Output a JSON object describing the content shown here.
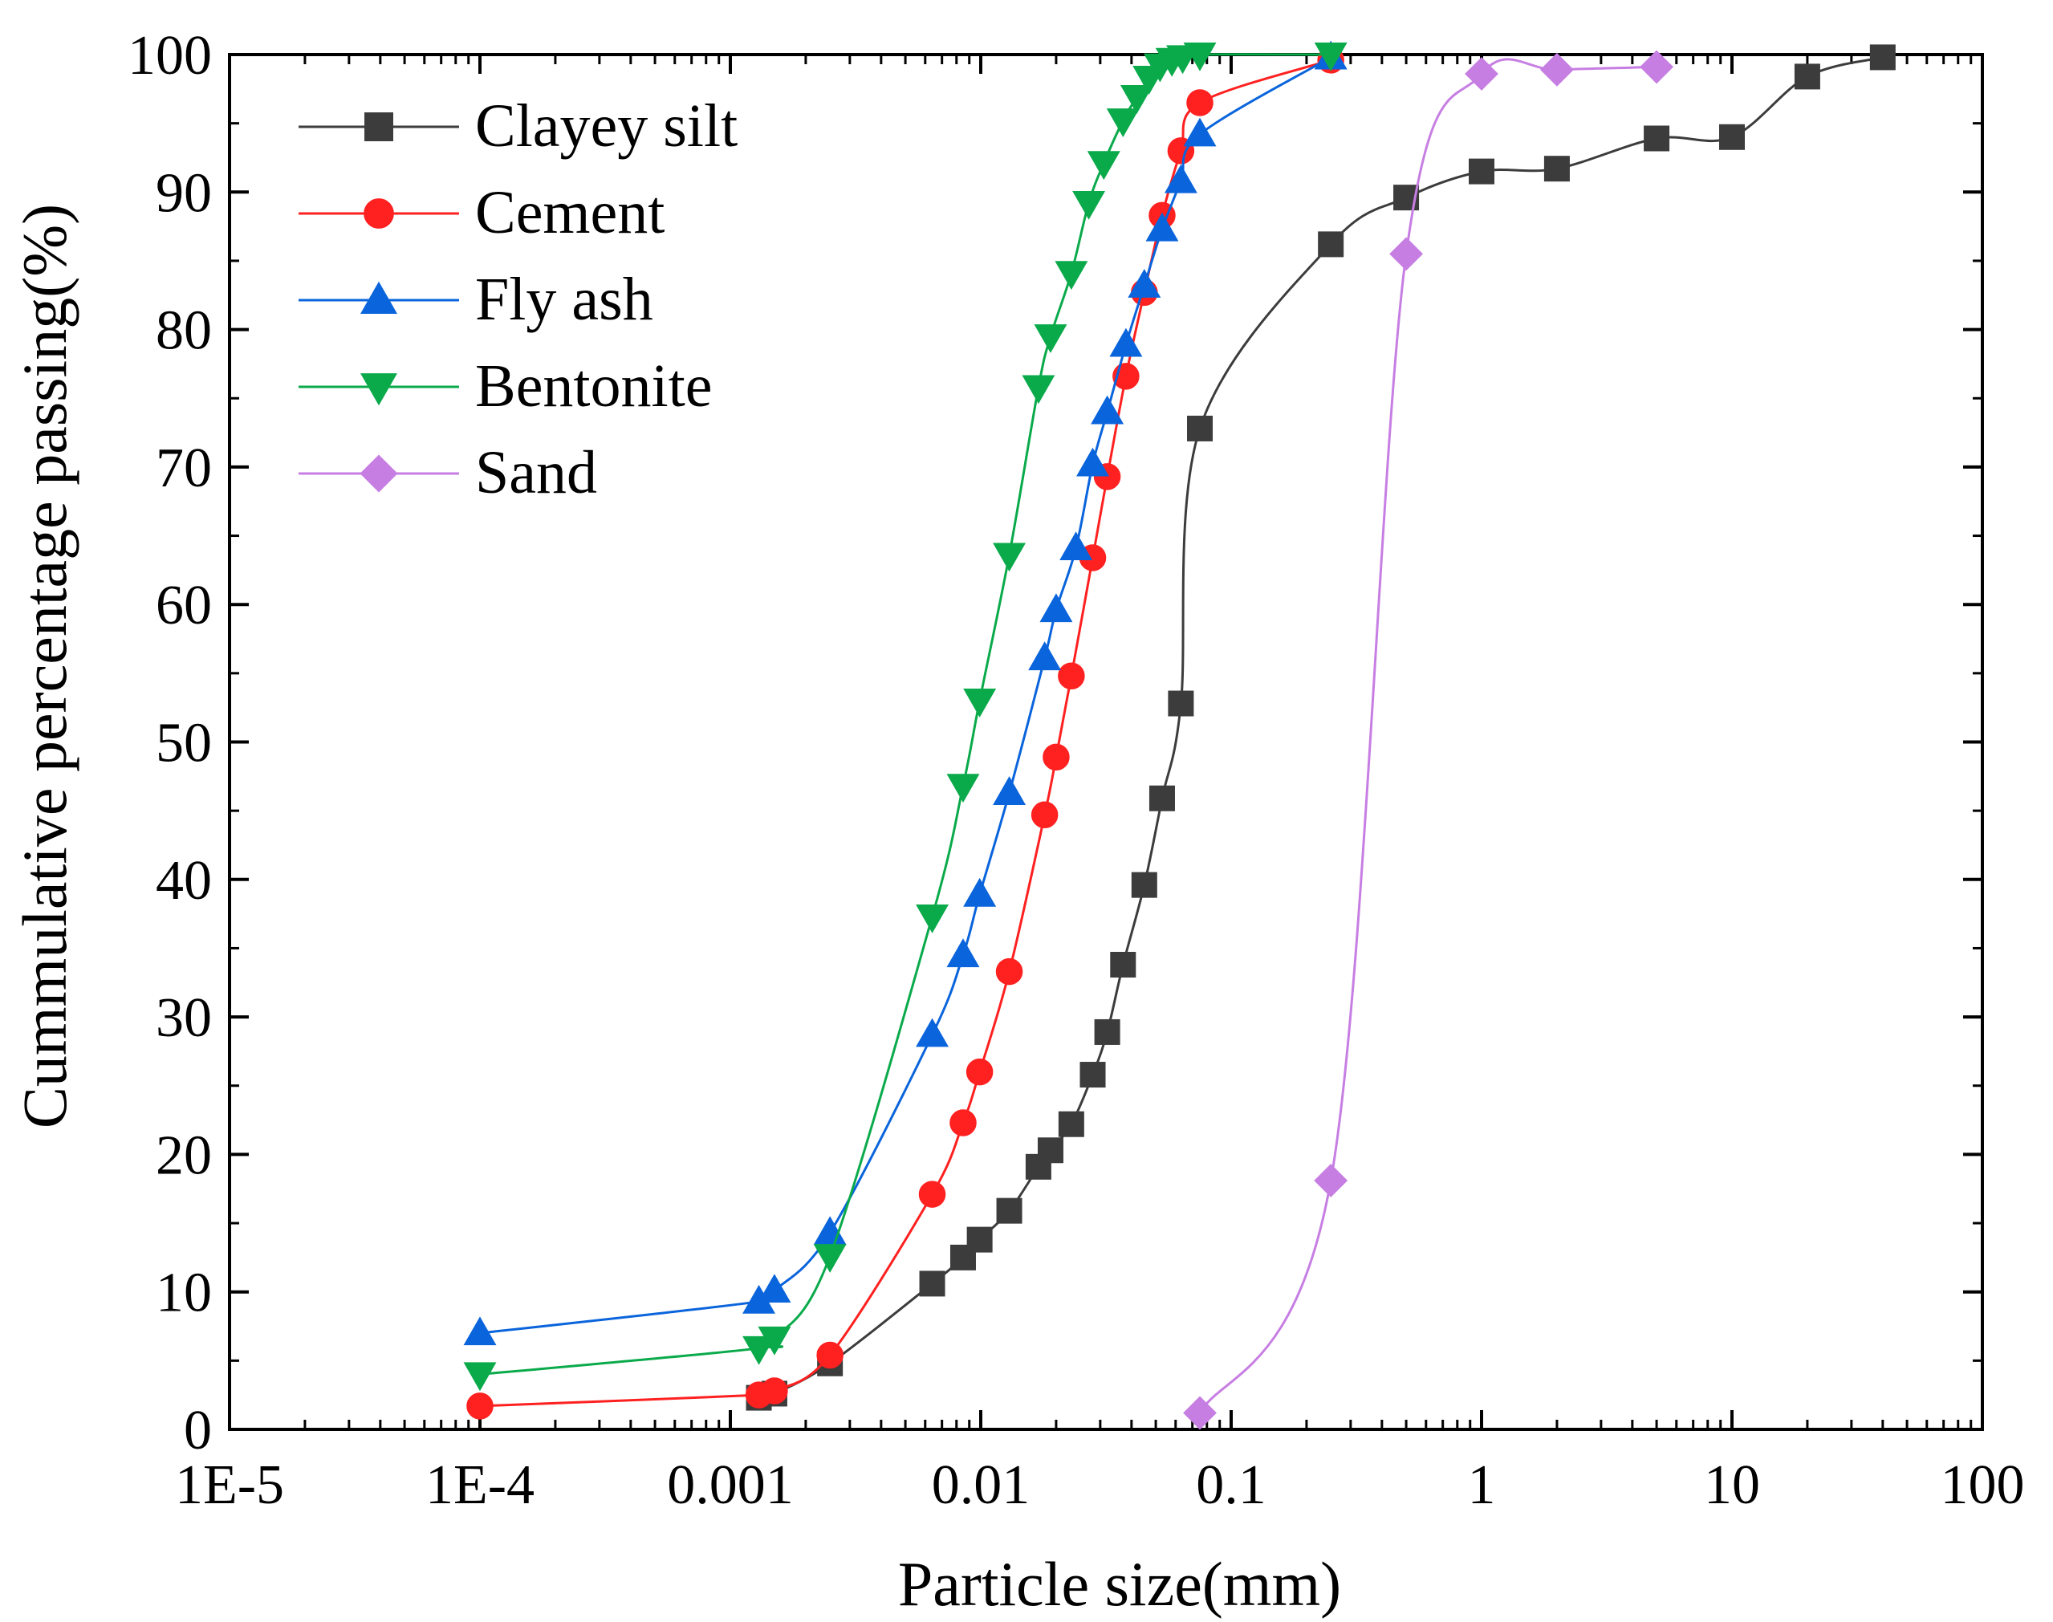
{
  "chart_data": {
    "type": "scatter",
    "title": "",
    "xlabel": "Particle size(mm)",
    "ylabel": "Cummulative percentage passing(%)",
    "xscale": "log",
    "xlim": [
      1e-05,
      100
    ],
    "ylim": [
      0,
      100
    ],
    "xticks": [
      {
        "value": 1e-05,
        "label": "1E-5"
      },
      {
        "value": 0.0001,
        "label": "1E-4"
      },
      {
        "value": 0.001,
        "label": "0.001"
      },
      {
        "value": 0.01,
        "label": "0.01"
      },
      {
        "value": 0.1,
        "label": "0.1"
      },
      {
        "value": 1,
        "label": "1"
      },
      {
        "value": 10,
        "label": "10"
      },
      {
        "value": 100,
        "label": "100"
      }
    ],
    "yticks": [
      {
        "value": 0,
        "label": "0"
      },
      {
        "value": 10,
        "label": "10"
      },
      {
        "value": 20,
        "label": "20"
      },
      {
        "value": 30,
        "label": "30"
      },
      {
        "value": 40,
        "label": "40"
      },
      {
        "value": 50,
        "label": "50"
      },
      {
        "value": 60,
        "label": "60"
      },
      {
        "value": 70,
        "label": "70"
      },
      {
        "value": 80,
        "label": "80"
      },
      {
        "value": 90,
        "label": "90"
      },
      {
        "value": 100,
        "label": "100"
      }
    ],
    "legend_position": "top-left",
    "series": [
      {
        "name": "Clayey silt",
        "color": "#3c3c3c",
        "marker": "square",
        "x": [
          0.0013,
          0.0015,
          0.0025,
          0.0064,
          0.0085,
          0.0099,
          0.013,
          0.017,
          0.019,
          0.023,
          0.028,
          0.032,
          0.037,
          0.045,
          0.053,
          0.063,
          0.075,
          0.25,
          0.5,
          1,
          2,
          5,
          10,
          20,
          40
        ],
        "y": [
          2.3,
          2.6,
          4.8,
          10.6,
          12.5,
          13.8,
          15.9,
          19.1,
          20.3,
          22.2,
          25.8,
          28.9,
          33.8,
          39.6,
          45.9,
          52.8,
          72.8,
          86.2,
          89.6,
          91.5,
          91.7,
          93.9,
          94.0,
          98.4,
          99.8
        ]
      },
      {
        "name": "Cement",
        "color": "#ff2020",
        "marker": "circle",
        "x": [
          0.0001,
          0.0013,
          0.0015,
          0.0025,
          0.0064,
          0.0085,
          0.0099,
          0.013,
          0.018,
          0.02,
          0.023,
          0.028,
          0.032,
          0.038,
          0.045,
          0.053,
          0.063,
          0.075,
          0.25
        ],
        "y": [
          1.7,
          2.5,
          2.8,
          5.4,
          17.1,
          22.3,
          26.0,
          33.3,
          44.7,
          48.9,
          54.8,
          63.4,
          69.3,
          76.6,
          82.7,
          88.3,
          93.0,
          96.5,
          99.6
        ]
      },
      {
        "name": "Fly ash",
        "color": "#0a64dc",
        "marker": "triangle-up",
        "x": [
          0.0001,
          0.0013,
          0.0015,
          0.0025,
          0.0064,
          0.0085,
          0.0099,
          0.013,
          0.018,
          0.02,
          0.024,
          0.028,
          0.032,
          0.038,
          0.045,
          0.053,
          0.063,
          0.075,
          0.25
        ],
        "y": [
          7.0,
          9.3,
          10.1,
          14.3,
          28.7,
          34.5,
          38.9,
          46.3,
          56.1,
          59.6,
          64.1,
          70.2,
          74.0,
          78.9,
          83.2,
          87.3,
          90.8,
          94.2,
          99.8
        ]
      },
      {
        "name": "Bentonite",
        "color": "#0aaa4b",
        "marker": "triangle-down",
        "x": [
          0.0001,
          0.0013,
          0.0015,
          0.0025,
          0.0064,
          0.0085,
          0.0099,
          0.013,
          0.017,
          0.019,
          0.023,
          0.027,
          0.031,
          0.037,
          0.042,
          0.047,
          0.052,
          0.058,
          0.064,
          0.075,
          0.25
        ],
        "y": [
          4.0,
          5.9,
          6.6,
          12.6,
          37.3,
          46.8,
          53.0,
          63.6,
          75.8,
          79.5,
          84.1,
          89.2,
          92.1,
          95.2,
          96.9,
          98.3,
          99.2,
          99.6,
          99.8,
          100.0,
          100.0
        ]
      },
      {
        "name": "Sand",
        "color": "#c77ee3",
        "marker": "diamond",
        "x": [
          0.075,
          0.25,
          0.5,
          1,
          2,
          5
        ],
        "y": [
          1.2,
          18.1,
          85.5,
          98.6,
          98.9,
          99.1
        ]
      }
    ]
  }
}
